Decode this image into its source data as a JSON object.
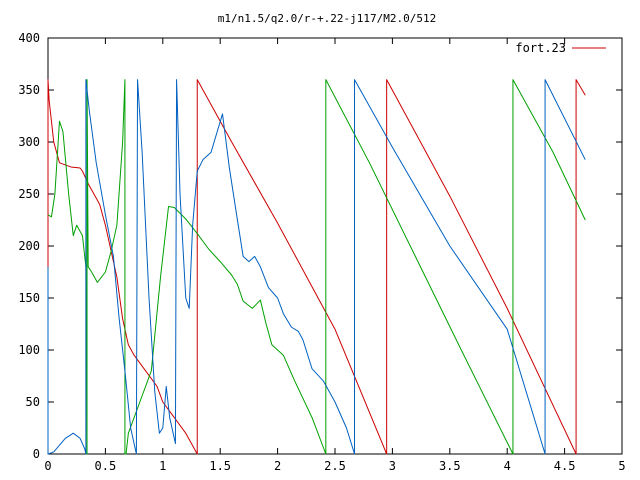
{
  "chart_data": {
    "type": "line",
    "title": "m1/n1.5/q2.0/r-+.22-j117/M2.0/512",
    "xlabel": "",
    "ylabel": "",
    "xlim": [
      0,
      5
    ],
    "ylim": [
      0,
      400
    ],
    "x_ticks": [
      "0",
      "0.5",
      "1",
      "1.5",
      "2",
      "2.5",
      "3",
      "3.5",
      "4",
      "4.5",
      "5"
    ],
    "y_ticks": [
      "0",
      "50",
      "100",
      "150",
      "200",
      "250",
      "300",
      "350",
      "400"
    ],
    "grid": false,
    "legend_position": "top-right",
    "legend": [
      "fort.23"
    ],
    "series": [
      {
        "name": "fort.23",
        "color": "#cc0000",
        "points": [
          [
            0,
            180
          ],
          [
            0,
            360
          ],
          [
            0.01,
            340
          ],
          [
            0.05,
            300
          ],
          [
            0.1,
            280
          ],
          [
            0.2,
            276
          ],
          [
            0.28,
            275
          ],
          [
            0.3,
            272
          ],
          [
            0.35,
            260
          ],
          [
            0.45,
            240
          ],
          [
            0.5,
            220
          ],
          [
            0.55,
            195
          ],
          [
            0.6,
            170
          ],
          [
            0.65,
            130
          ],
          [
            0.7,
            105
          ],
          [
            0.75,
            95
          ],
          [
            0.85,
            80
          ],
          [
            0.95,
            65
          ],
          [
            1.0,
            50
          ],
          [
            1.1,
            35
          ],
          [
            1.2,
            20
          ],
          [
            1.3,
            0
          ],
          [
            1.3,
            360
          ],
          [
            1.6,
            300
          ],
          [
            2.0,
            222
          ],
          [
            2.5,
            120
          ],
          [
            2.95,
            0
          ],
          [
            2.95,
            360
          ],
          [
            3.5,
            248
          ],
          [
            4.0,
            140
          ],
          [
            4.6,
            0
          ],
          [
            4.6,
            360
          ],
          [
            4.68,
            345
          ]
        ]
      },
      {
        "color": "#00a000",
        "points": [
          [
            0,
            230
          ],
          [
            0.03,
            228
          ],
          [
            0.06,
            250
          ],
          [
            0.1,
            320
          ],
          [
            0.13,
            310
          ],
          [
            0.18,
            250
          ],
          [
            0.22,
            210
          ],
          [
            0.25,
            220
          ],
          [
            0.3,
            210
          ],
          [
            0.33,
            180
          ],
          [
            0.34,
            0
          ],
          [
            0.34,
            360
          ],
          [
            0.35,
            180
          ],
          [
            0.38,
            175
          ],
          [
            0.43,
            165
          ],
          [
            0.5,
            175
          ],
          [
            0.55,
            195
          ],
          [
            0.6,
            220
          ],
          [
            0.65,
            300
          ],
          [
            0.67,
            360
          ],
          [
            0.67,
            0
          ],
          [
            0.68,
            0
          ],
          [
            0.7,
            20
          ],
          [
            0.8,
            50
          ],
          [
            0.9,
            80
          ],
          [
            0.98,
            170
          ],
          [
            1.05,
            238
          ],
          [
            1.1,
            237
          ],
          [
            1.2,
            226
          ],
          [
            1.3,
            212
          ],
          [
            1.4,
            197
          ],
          [
            1.5,
            185
          ],
          [
            1.6,
            172
          ],
          [
            1.65,
            163
          ],
          [
            1.7,
            147
          ],
          [
            1.78,
            140
          ],
          [
            1.85,
            148
          ],
          [
            1.9,
            125
          ],
          [
            1.95,
            105
          ],
          [
            2.05,
            95
          ],
          [
            2.15,
            70
          ],
          [
            2.3,
            35
          ],
          [
            2.42,
            0
          ],
          [
            2.42,
            360
          ],
          [
            2.8,
            280
          ],
          [
            3.2,
            190
          ],
          [
            3.6,
            100
          ],
          [
            4.05,
            0
          ],
          [
            4.05,
            360
          ],
          [
            4.4,
            290
          ],
          [
            4.68,
            225
          ]
        ]
      },
      {
        "color": "#0060c0",
        "points": [
          [
            0,
            180
          ],
          [
            0,
            0
          ],
          [
            0.05,
            2
          ],
          [
            0.15,
            15
          ],
          [
            0.22,
            20
          ],
          [
            0.28,
            15
          ],
          [
            0.32,
            5
          ],
          [
            0.33,
            0
          ],
          [
            0.33,
            360
          ],
          [
            0.36,
            330
          ],
          [
            0.42,
            280
          ],
          [
            0.5,
            230
          ],
          [
            0.57,
            190
          ],
          [
            0.62,
            130
          ],
          [
            0.67,
            80
          ],
          [
            0.72,
            25
          ],
          [
            0.77,
            0
          ],
          [
            0.78,
            360
          ],
          [
            0.82,
            290
          ],
          [
            0.88,
            150
          ],
          [
            0.93,
            60
          ],
          [
            0.97,
            20
          ],
          [
            1.0,
            25
          ],
          [
            1.03,
            65
          ],
          [
            1.06,
            35
          ],
          [
            1.11,
            10
          ],
          [
            1.12,
            360
          ],
          [
            1.15,
            250
          ],
          [
            1.2,
            150
          ],
          [
            1.23,
            140
          ],
          [
            1.26,
            220
          ],
          [
            1.3,
            272
          ],
          [
            1.35,
            283
          ],
          [
            1.42,
            290
          ],
          [
            1.52,
            327
          ],
          [
            1.58,
            275
          ],
          [
            1.65,
            225
          ],
          [
            1.7,
            190
          ],
          [
            1.75,
            185
          ],
          [
            1.8,
            190
          ],
          [
            1.85,
            180
          ],
          [
            1.92,
            160
          ],
          [
            2.0,
            150
          ],
          [
            2.05,
            135
          ],
          [
            2.12,
            122
          ],
          [
            2.18,
            118
          ],
          [
            2.22,
            110
          ],
          [
            2.3,
            82
          ],
          [
            2.4,
            70
          ],
          [
            2.5,
            50
          ],
          [
            2.6,
            25
          ],
          [
            2.67,
            0
          ],
          [
            2.67,
            360
          ],
          [
            3.0,
            295
          ],
          [
            3.5,
            200
          ],
          [
            4.0,
            120
          ],
          [
            4.33,
            0
          ],
          [
            4.33,
            360
          ],
          [
            4.68,
            283
          ]
        ]
      }
    ]
  }
}
